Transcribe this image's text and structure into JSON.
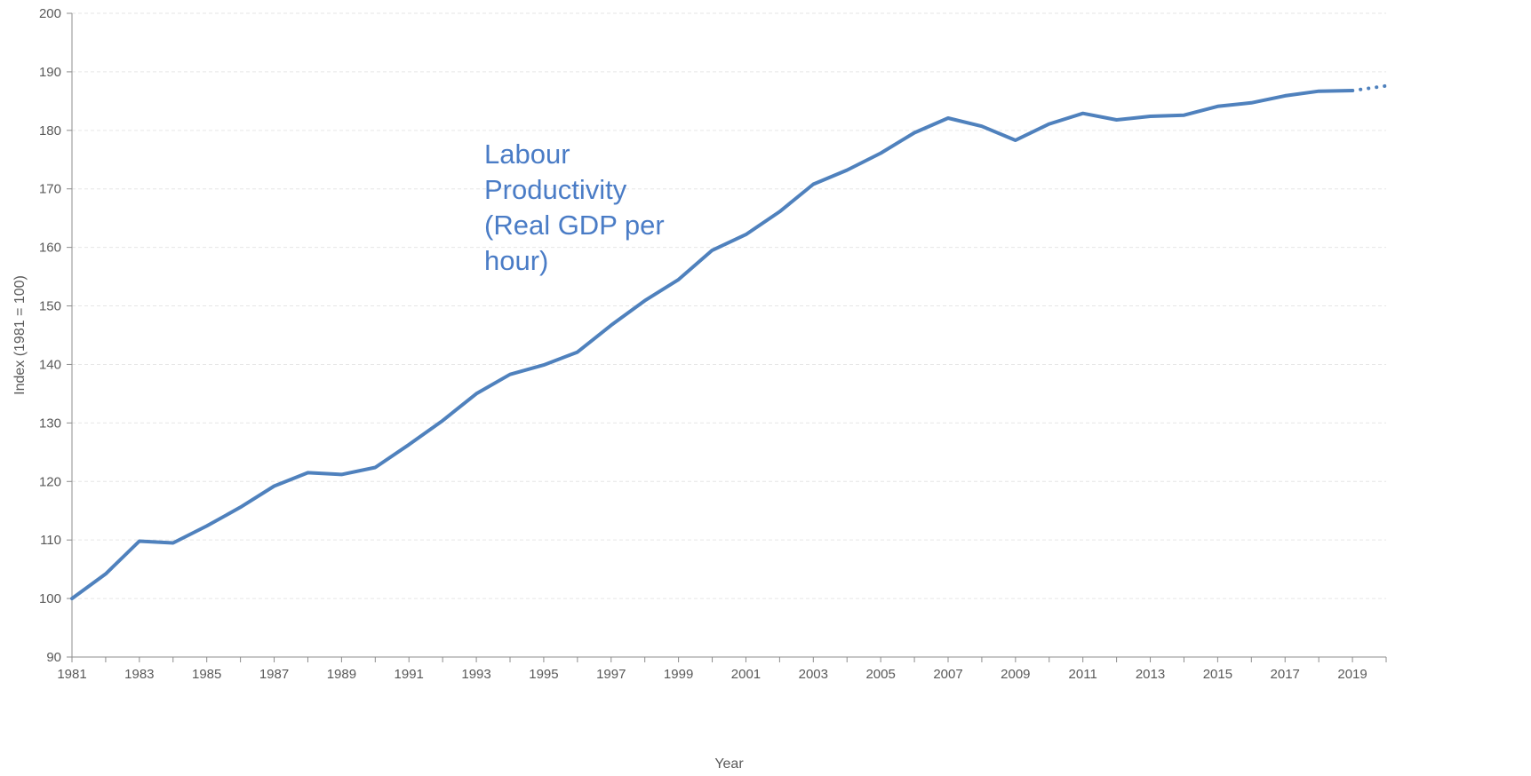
{
  "chart_data": {
    "type": "line",
    "xlabel": "Year",
    "ylabel": "Index (1981 = 100)",
    "ylim": [
      90,
      200
    ],
    "yticks": [
      90,
      100,
      110,
      120,
      130,
      140,
      150,
      160,
      170,
      180,
      190,
      200
    ],
    "xlim": [
      1981,
      2020
    ],
    "xtick_labels": [
      "1981",
      "1983",
      "1985",
      "1987",
      "1989",
      "1991",
      "1993",
      "1995",
      "1997",
      "1999",
      "2001",
      "2003",
      "2005",
      "2007",
      "2009",
      "2011",
      "2013",
      "2015",
      "2017",
      "2019"
    ],
    "grid": true,
    "line_color": "#4f81bd",
    "annotation_color": "#4a7cc6",
    "annotation": [
      "Labour",
      "Productivity",
      "(Real GDP per",
      "hour)"
    ],
    "series": [
      {
        "x": [
          1981,
          1982,
          1983,
          1984,
          1985,
          1986,
          1987,
          1988,
          1989,
          1990,
          1991,
          1992,
          1993,
          1994,
          1995,
          1996,
          1997,
          1998,
          1999,
          2000,
          2001,
          2002,
          2003,
          2004,
          2005,
          2006,
          2007,
          2008,
          2009,
          2010,
          2011,
          2012,
          2013,
          2014,
          2015,
          2016,
          2017,
          2018,
          2019
        ],
        "values": [
          100.0,
          104.2,
          109.8,
          109.5,
          112.4,
          115.6,
          119.2,
          121.5,
          121.2,
          122.4,
          126.3,
          130.4,
          135.0,
          138.3,
          139.9,
          142.1,
          146.7,
          150.9,
          154.5,
          159.5,
          162.2,
          166.1,
          170.8,
          173.2,
          176.1,
          179.6,
          182.1,
          180.7,
          178.3,
          181.1,
          182.9,
          181.8,
          182.4,
          182.6,
          184.1,
          184.7,
          185.9,
          186.7,
          186.8
        ]
      },
      {
        "style": "dotted",
        "x": [
          2019,
          2020
        ],
        "values": [
          186.8,
          187.6
        ]
      }
    ]
  }
}
